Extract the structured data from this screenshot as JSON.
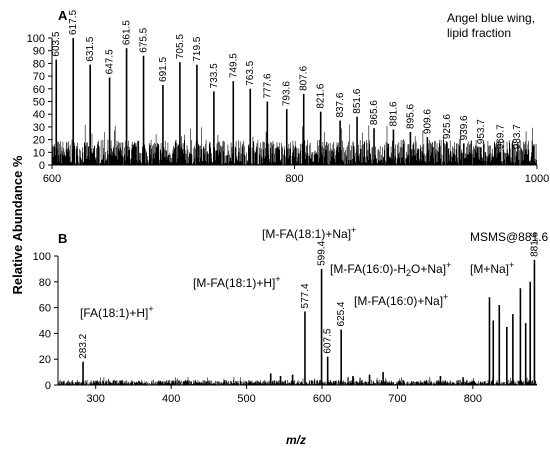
{
  "figure": {
    "y_axis_label": "Relative Abundance %",
    "x_axis_label": "m/z"
  },
  "chart_data": [
    {
      "panel": "A",
      "type": "line",
      "note": "Angel blue wing,\nlipid fraction",
      "xlim": [
        600,
        1000
      ],
      "ylim": [
        0,
        100
      ],
      "x_ticks": [
        600,
        800,
        1000
      ],
      "y_ticks": [
        0,
        10,
        20,
        30,
        40,
        50,
        60,
        70,
        80,
        90,
        100
      ],
      "baseline_noise": 20,
      "peaks": [
        {
          "x": 603.5,
          "y": 83,
          "label": "603.5"
        },
        {
          "x": 617.5,
          "y": 100,
          "label": "617.5"
        },
        {
          "x": 631.5,
          "y": 79,
          "label": "631.5"
        },
        {
          "x": 647.5,
          "y": 69,
          "label": "647.5"
        },
        {
          "x": 661.5,
          "y": 92,
          "label": "661.5"
        },
        {
          "x": 675.5,
          "y": 86,
          "label": "675.5"
        },
        {
          "x": 691.5,
          "y": 63,
          "label": "691.5"
        },
        {
          "x": 705.5,
          "y": 81,
          "label": "705.5"
        },
        {
          "x": 719.5,
          "y": 79,
          "label": "719.5"
        },
        {
          "x": 733.5,
          "y": 58,
          "label": "733.5"
        },
        {
          "x": 749.5,
          "y": 66,
          "label": "749.5"
        },
        {
          "x": 763.5,
          "y": 60,
          "label": "763.5"
        },
        {
          "x": 777.6,
          "y": 50,
          "label": "777.6"
        },
        {
          "x": 793.6,
          "y": 44,
          "label": "793.6"
        },
        {
          "x": 807.6,
          "y": 56,
          "label": "807.6"
        },
        {
          "x": 821.6,
          "y": 42,
          "label": "821.6"
        },
        {
          "x": 837.6,
          "y": 35,
          "label": "837.6"
        },
        {
          "x": 851.6,
          "y": 38,
          "label": "851.6"
        },
        {
          "x": 865.6,
          "y": 29,
          "label": "865.6"
        },
        {
          "x": 881.6,
          "y": 28,
          "label": "881.6"
        },
        {
          "x": 895.6,
          "y": 26,
          "label": "895.6"
        },
        {
          "x": 909.6,
          "y": 22,
          "label": "909.6"
        },
        {
          "x": 925.6,
          "y": 18,
          "label": "925.6"
        },
        {
          "x": 939.6,
          "y": 17,
          "label": "939.6"
        },
        {
          "x": 953.7,
          "y": 14,
          "label": "953.7"
        },
        {
          "x": 969.7,
          "y": 10,
          "label": "969.7"
        },
        {
          "x": 983.7,
          "y": 10,
          "label": "983.7"
        }
      ]
    },
    {
      "panel": "B",
      "type": "line",
      "note": "MSMS@881.6",
      "xlim": [
        250,
        885
      ],
      "ylim": [
        0,
        100
      ],
      "x_ticks": [
        300,
        400,
        500,
        600,
        700,
        800
      ],
      "y_ticks": [
        0,
        20,
        40,
        60,
        80,
        100
      ],
      "baseline_noise": 4,
      "peaks": [
        {
          "x": 283.2,
          "y": 18,
          "label": "283.2"
        },
        {
          "x": 577.4,
          "y": 57,
          "label": "577.4"
        },
        {
          "x": 599.4,
          "y": 90,
          "label": "599.4"
        },
        {
          "x": 607.5,
          "y": 22,
          "label": "607.5"
        },
        {
          "x": 625.4,
          "y": 43,
          "label": "625.4"
        },
        {
          "x": 881.6,
          "y": 97,
          "label": "881.6"
        },
        {
          "x": 822,
          "y": 68,
          "label": ""
        },
        {
          "x": 827,
          "y": 50,
          "label": ""
        },
        {
          "x": 835,
          "y": 62,
          "label": ""
        },
        {
          "x": 845,
          "y": 45,
          "label": ""
        },
        {
          "x": 853,
          "y": 55,
          "label": ""
        },
        {
          "x": 863,
          "y": 75,
          "label": ""
        },
        {
          "x": 870,
          "y": 48,
          "label": ""
        },
        {
          "x": 876,
          "y": 80,
          "label": ""
        },
        {
          "x": 532,
          "y": 9,
          "label": ""
        },
        {
          "x": 545,
          "y": 7,
          "label": ""
        },
        {
          "x": 561,
          "y": 8,
          "label": ""
        },
        {
          "x": 641,
          "y": 7,
          "label": ""
        },
        {
          "x": 663,
          "y": 8,
          "label": ""
        },
        {
          "x": 681,
          "y": 10,
          "label": ""
        },
        {
          "x": 757,
          "y": 7,
          "label": ""
        },
        {
          "x": 787,
          "y": 6,
          "label": ""
        }
      ],
      "annotations": [
        {
          "text": "[FA(18:1)+H]",
          "sup": "+"
        },
        {
          "text": "[M-FA(18:1)+H]",
          "sup": "+"
        },
        {
          "text": "[M-FA(18:1)+Na]",
          "sup": "+"
        },
        {
          "text": "[M-FA(16:0)-H",
          "sub": "2",
          "text2": "O+Na]",
          "sup": "+"
        },
        {
          "text": "[M-FA(16:0)+Na]",
          "sup": "+"
        },
        {
          "text": "[M+Na]",
          "sup": "+"
        }
      ]
    }
  ]
}
